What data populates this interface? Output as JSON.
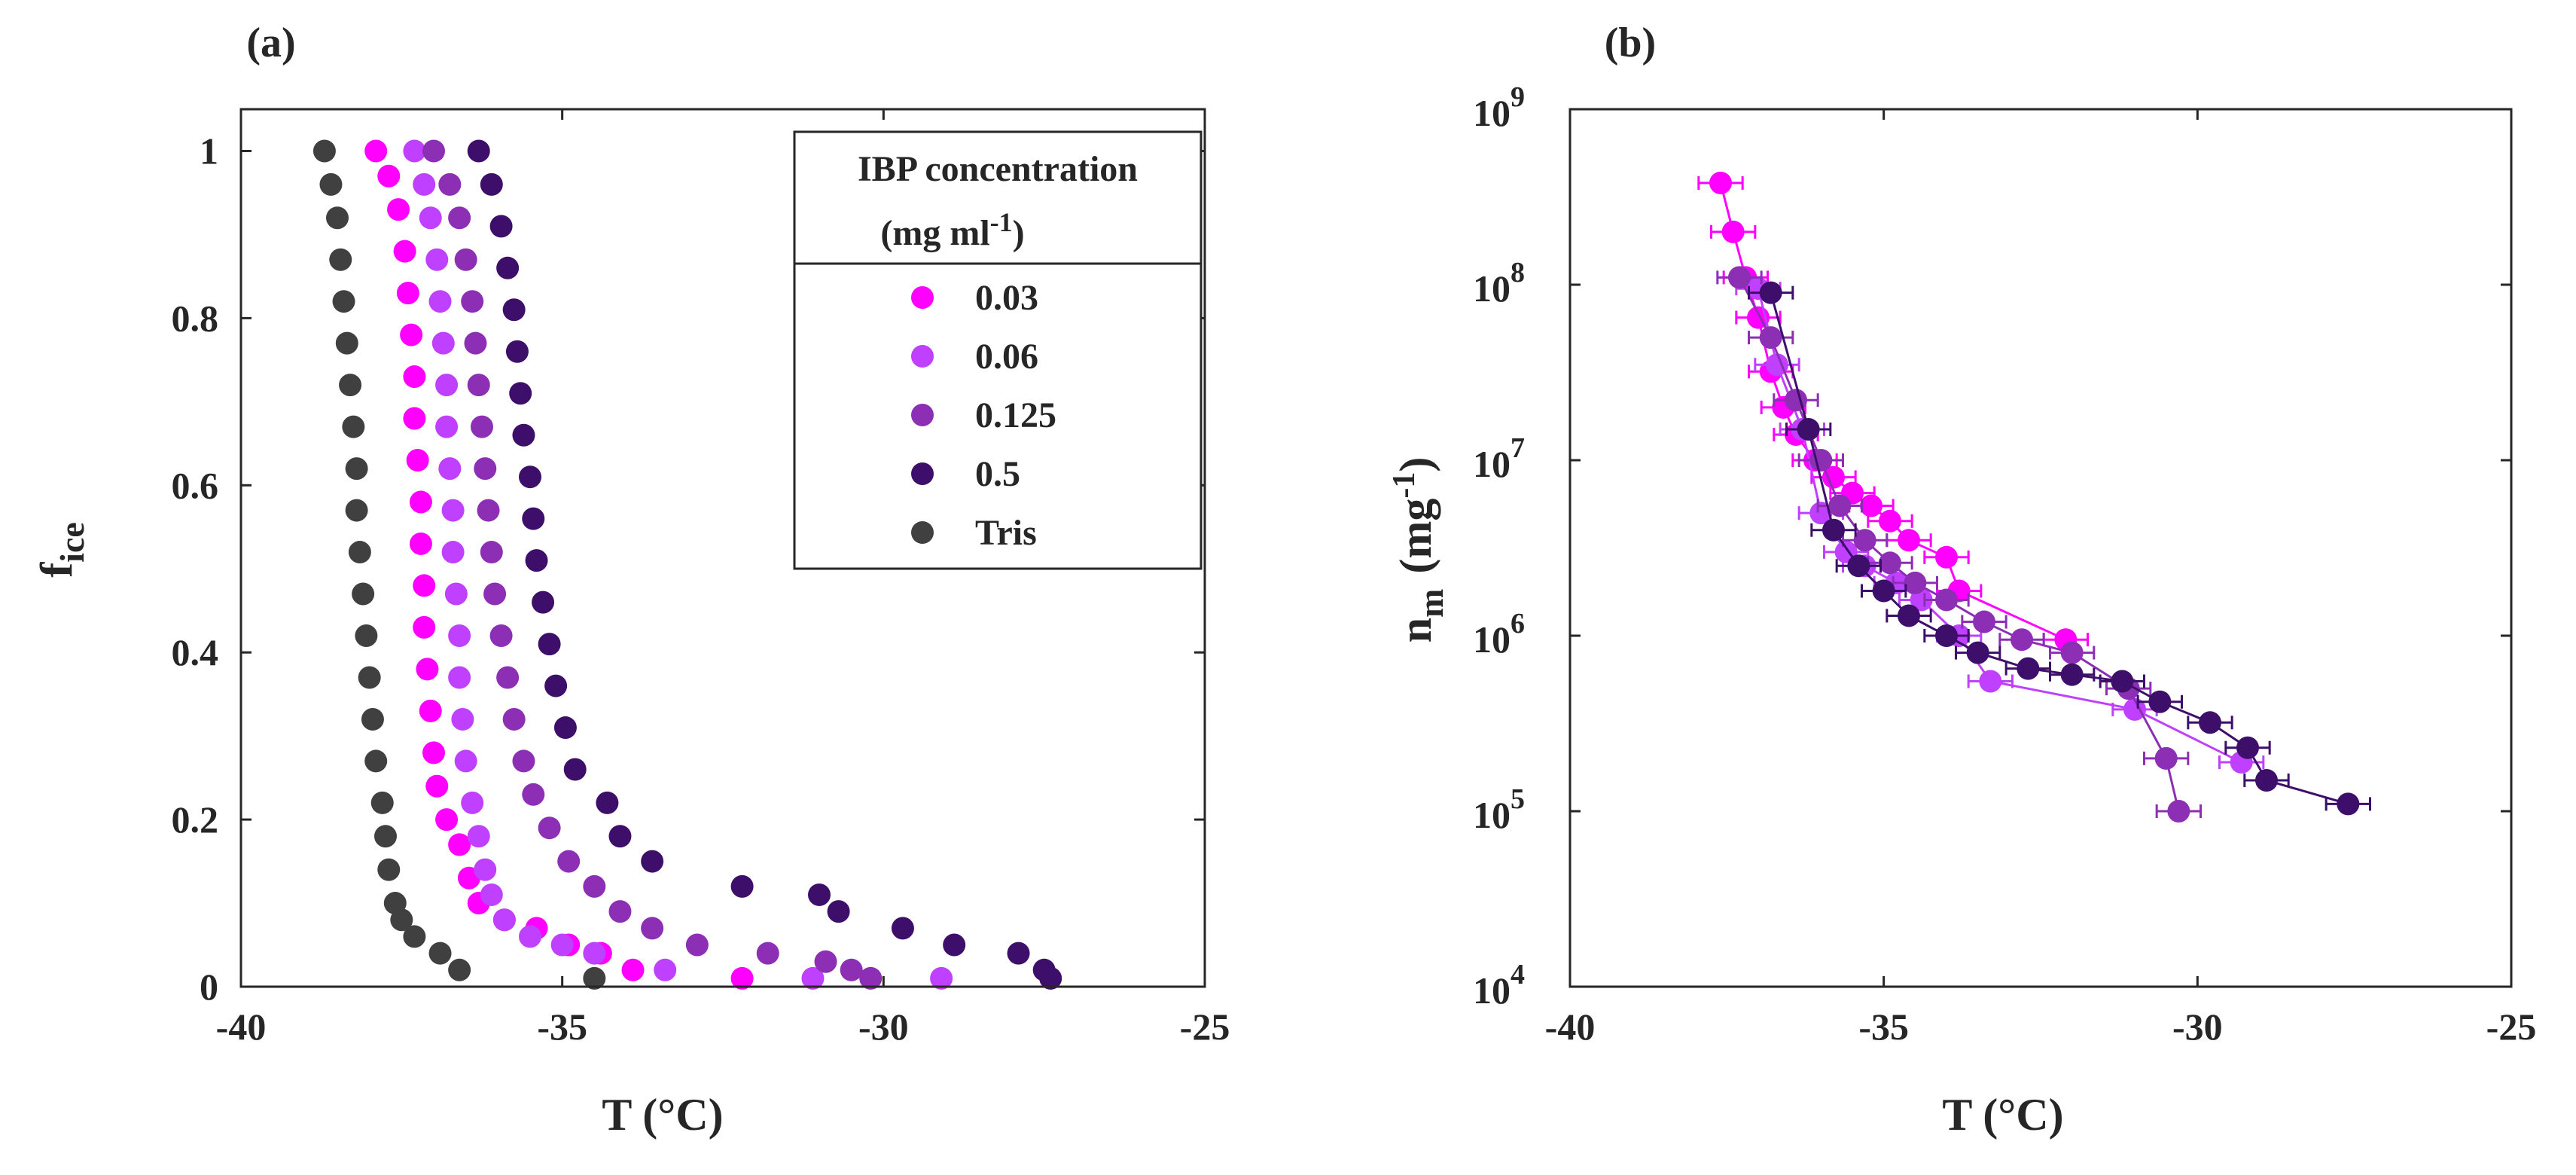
{
  "chart_data": [
    {
      "panel": "(a)",
      "type": "scatter",
      "xlabel": "T (°C)",
      "ylabel": {
        "base": "f",
        "sub": "ice"
      },
      "xlim": [
        -40,
        -25
      ],
      "ylim": [
        0,
        1.05
      ],
      "xticks": [
        -40,
        -35,
        -30,
        -25
      ],
      "yticks": [
        0,
        0.2,
        0.4,
        0.6,
        0.8,
        1
      ],
      "xtick_labels": [
        "-40",
        "-35",
        "-30",
        "-25"
      ],
      "ytick_labels": [
        "0",
        "0.2",
        "0.4",
        "0.6",
        "0.8",
        "1"
      ],
      "legend": {
        "title_line1": "IBP concentration",
        "title_line2_base": "(mg ml",
        "title_line2_sup": "-1",
        "title_line2_end": ")",
        "placement": "top-right"
      },
      "series": [
        {
          "name": "0.03",
          "color": "#ff00ff",
          "points": [
            [
              -37.9,
              1.0
            ],
            [
              -37.7,
              0.97
            ],
            [
              -37.55,
              0.93
            ],
            [
              -37.45,
              0.88
            ],
            [
              -37.4,
              0.83
            ],
            [
              -37.35,
              0.78
            ],
            [
              -37.3,
              0.73
            ],
            [
              -37.3,
              0.68
            ],
            [
              -37.25,
              0.63
            ],
            [
              -37.2,
              0.58
            ],
            [
              -37.2,
              0.53
            ],
            [
              -37.15,
              0.48
            ],
            [
              -37.15,
              0.43
            ],
            [
              -37.1,
              0.38
            ],
            [
              -37.05,
              0.33
            ],
            [
              -37.0,
              0.28
            ],
            [
              -36.95,
              0.24
            ],
            [
              -36.8,
              0.2
            ],
            [
              -36.6,
              0.17
            ],
            [
              -36.45,
              0.13
            ],
            [
              -36.3,
              0.1
            ],
            [
              -35.9,
              0.08
            ],
            [
              -35.4,
              0.07
            ],
            [
              -34.9,
              0.05
            ],
            [
              -34.4,
              0.04
            ],
            [
              -33.9,
              0.02
            ],
            [
              -32.2,
              0.01
            ]
          ]
        },
        {
          "name": "0.06",
          "color": "#bf40ff",
          "points": [
            [
              -37.3,
              1.0
            ],
            [
              -37.15,
              0.96
            ],
            [
              -37.05,
              0.92
            ],
            [
              -36.95,
              0.87
            ],
            [
              -36.9,
              0.82
            ],
            [
              -36.85,
              0.77
            ],
            [
              -36.8,
              0.72
            ],
            [
              -36.8,
              0.67
            ],
            [
              -36.75,
              0.62
            ],
            [
              -36.7,
              0.57
            ],
            [
              -36.7,
              0.52
            ],
            [
              -36.65,
              0.47
            ],
            [
              -36.6,
              0.42
            ],
            [
              -36.6,
              0.37
            ],
            [
              -36.55,
              0.32
            ],
            [
              -36.5,
              0.27
            ],
            [
              -36.4,
              0.22
            ],
            [
              -36.3,
              0.18
            ],
            [
              -36.2,
              0.14
            ],
            [
              -36.1,
              0.11
            ],
            [
              -35.9,
              0.08
            ],
            [
              -35.5,
              0.06
            ],
            [
              -35.0,
              0.05
            ],
            [
              -34.5,
              0.04
            ],
            [
              -33.4,
              0.02
            ],
            [
              -31.1,
              0.01
            ],
            [
              -29.1,
              0.01
            ]
          ]
        },
        {
          "name": "0.125",
          "color": "#8c2fb5",
          "points": [
            [
              -37.0,
              1.0
            ],
            [
              -36.75,
              0.96
            ],
            [
              -36.6,
              0.92
            ],
            [
              -36.5,
              0.87
            ],
            [
              -36.4,
              0.82
            ],
            [
              -36.35,
              0.77
            ],
            [
              -36.3,
              0.72
            ],
            [
              -36.25,
              0.67
            ],
            [
              -36.2,
              0.62
            ],
            [
              -36.15,
              0.57
            ],
            [
              -36.1,
              0.52
            ],
            [
              -36.05,
              0.47
            ],
            [
              -35.95,
              0.42
            ],
            [
              -35.85,
              0.37
            ],
            [
              -35.75,
              0.32
            ],
            [
              -35.6,
              0.27
            ],
            [
              -35.45,
              0.23
            ],
            [
              -35.2,
              0.19
            ],
            [
              -34.9,
              0.15
            ],
            [
              -34.5,
              0.12
            ],
            [
              -34.1,
              0.09
            ],
            [
              -33.6,
              0.07
            ],
            [
              -32.9,
              0.05
            ],
            [
              -31.8,
              0.04
            ],
            [
              -30.9,
              0.03
            ],
            [
              -30.5,
              0.02
            ],
            [
              -30.2,
              0.01
            ]
          ]
        },
        {
          "name": "0.5",
          "color": "#3d0f6b",
          "points": [
            [
              -36.3,
              1.0
            ],
            [
              -36.1,
              0.96
            ],
            [
              -35.95,
              0.91
            ],
            [
              -35.85,
              0.86
            ],
            [
              -35.75,
              0.81
            ],
            [
              -35.7,
              0.76
            ],
            [
              -35.65,
              0.71
            ],
            [
              -35.6,
              0.66
            ],
            [
              -35.5,
              0.61
            ],
            [
              -35.45,
              0.56
            ],
            [
              -35.4,
              0.51
            ],
            [
              -35.3,
              0.46
            ],
            [
              -35.2,
              0.41
            ],
            [
              -35.1,
              0.36
            ],
            [
              -34.95,
              0.31
            ],
            [
              -34.8,
              0.26
            ],
            [
              -34.3,
              0.22
            ],
            [
              -34.1,
              0.18
            ],
            [
              -33.6,
              0.15
            ],
            [
              -32.2,
              0.12
            ],
            [
              -31.0,
              0.11
            ],
            [
              -30.7,
              0.09
            ],
            [
              -29.7,
              0.07
            ],
            [
              -28.9,
              0.05
            ],
            [
              -27.9,
              0.04
            ],
            [
              -27.5,
              0.02
            ],
            [
              -27.4,
              0.01
            ]
          ]
        },
        {
          "name": "Tris",
          "color": "#404040",
          "points": [
            [
              -38.7,
              1.0
            ],
            [
              -38.6,
              0.96
            ],
            [
              -38.5,
              0.92
            ],
            [
              -38.45,
              0.87
            ],
            [
              -38.4,
              0.82
            ],
            [
              -38.35,
              0.77
            ],
            [
              -38.3,
              0.72
            ],
            [
              -38.25,
              0.67
            ],
            [
              -38.2,
              0.62
            ],
            [
              -38.2,
              0.57
            ],
            [
              -38.15,
              0.52
            ],
            [
              -38.1,
              0.47
            ],
            [
              -38.05,
              0.42
            ],
            [
              -38.0,
              0.37
            ],
            [
              -37.95,
              0.32
            ],
            [
              -37.9,
              0.27
            ],
            [
              -37.8,
              0.22
            ],
            [
              -37.75,
              0.18
            ],
            [
              -37.7,
              0.14
            ],
            [
              -37.6,
              0.1
            ],
            [
              -37.5,
              0.08
            ],
            [
              -37.3,
              0.06
            ],
            [
              -36.9,
              0.04
            ],
            [
              -36.6,
              0.02
            ],
            [
              -34.5,
              0.01
            ]
          ]
        }
      ]
    },
    {
      "panel": "(b)",
      "type": "scatter",
      "xlabel": "T (°C)",
      "ylabel": {
        "base": "n",
        "sub": "m",
        "unit": "(mg",
        "sup": "-1",
        "end": ")"
      },
      "xscale": "linear",
      "yscale": "log",
      "xlim": [
        -40,
        -25
      ],
      "ylim": [
        10000,
        1000000000
      ],
      "xticks": [
        -40,
        -35,
        -30,
        -25
      ],
      "xtick_labels": [
        "-40",
        "-35",
        "-30",
        "-25"
      ],
      "ytick_exponents": [
        4,
        5,
        6,
        7,
        8,
        9
      ],
      "ytick_base": "10",
      "x_error_halfwidth": 0.35,
      "series": [
        {
          "name": "0.03",
          "color": "#ff00ff",
          "points": [
            [
              -37.6,
              380000000.0
            ],
            [
              -37.4,
              200000000.0
            ],
            [
              -37.2,
              110000000.0
            ],
            [
              -37.0,
              65000000.0
            ],
            [
              -36.8,
              32000000.0
            ],
            [
              -36.6,
              20000000.0
            ],
            [
              -36.4,
              14000000.0
            ],
            [
              -36.1,
              10000000.0
            ],
            [
              -35.8,
              8000000.0
            ],
            [
              -35.5,
              6500000.0
            ],
            [
              -35.2,
              5500000.0
            ],
            [
              -34.9,
              4500000.0
            ],
            [
              -34.6,
              3500000.0
            ],
            [
              -34.0,
              2800000.0
            ],
            [
              -33.8,
              1800000.0
            ],
            [
              -32.1,
              950000.0
            ]
          ]
        },
        {
          "name": "0.06",
          "color": "#bf40ff",
          "points": [
            [
              -37.0,
              95000000.0
            ],
            [
              -36.7,
              35000000.0
            ],
            [
              -36.3,
              15000000.0
            ],
            [
              -36.0,
              5000000.0
            ],
            [
              -35.6,
              3000000.0
            ],
            [
              -35.3,
              2500000.0
            ],
            [
              -34.8,
              2000000.0
            ],
            [
              -34.4,
              1600000.0
            ],
            [
              -33.8,
              1000000.0
            ],
            [
              -33.3,
              550000.0
            ],
            [
              -31.0,
              380000.0
            ],
            [
              -29.3,
              190000.0
            ]
          ]
        },
        {
          "name": "0.125",
          "color": "#8c2fb5",
          "points": [
            [
              -37.3,
              110000000.0
            ],
            [
              -36.8,
              50000000.0
            ],
            [
              -36.4,
              22000000.0
            ],
            [
              -36.0,
              10000000.0
            ],
            [
              -35.7,
              5500000.0
            ],
            [
              -35.3,
              3500000.0
            ],
            [
              -34.9,
              2600000.0
            ],
            [
              -34.5,
              2000000.0
            ],
            [
              -34.0,
              1600000.0
            ],
            [
              -33.4,
              1200000.0
            ],
            [
              -32.8,
              950000.0
            ],
            [
              -32.0,
              800000.0
            ],
            [
              -31.1,
              500000.0
            ],
            [
              -30.5,
              200000.0
            ],
            [
              -30.3,
              100000.0
            ]
          ]
        },
        {
          "name": "0.5",
          "color": "#3d0f6b",
          "points": [
            [
              -36.8,
              90000000.0
            ],
            [
              -36.2,
              15000000.0
            ],
            [
              -35.8,
              4000000.0
            ],
            [
              -35.4,
              2500000.0
            ],
            [
              -35.0,
              1800000.0
            ],
            [
              -34.6,
              1300000.0
            ],
            [
              -34.0,
              1000000.0
            ],
            [
              -33.5,
              800000.0
            ],
            [
              -32.7,
              650000.0
            ],
            [
              -32.0,
              600000.0
            ],
            [
              -31.2,
              550000.0
            ],
            [
              -30.6,
              420000.0
            ],
            [
              -29.8,
              320000.0
            ],
            [
              -29.2,
              230000.0
            ],
            [
              -28.9,
              150000.0
            ],
            [
              -27.6,
              110000.0
            ]
          ]
        }
      ]
    }
  ]
}
